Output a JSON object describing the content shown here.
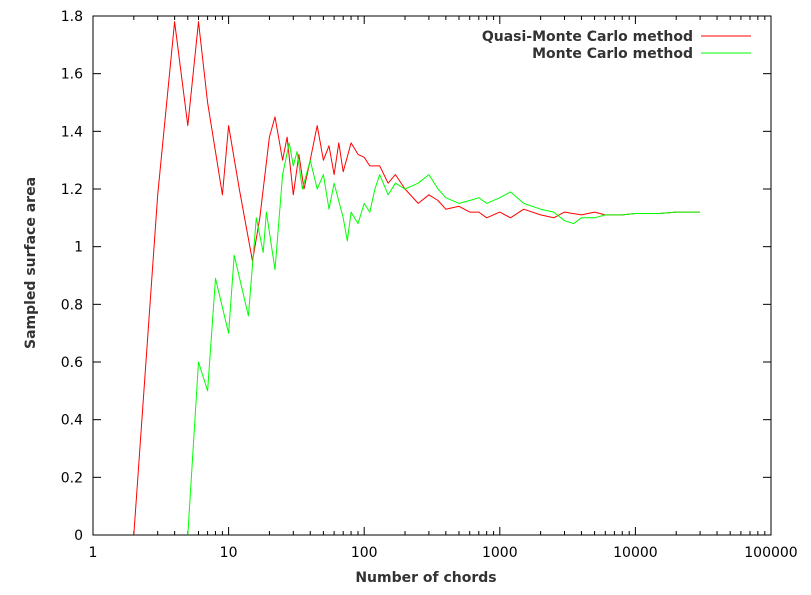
{
  "chart_data": {
    "type": "line",
    "xlabel": "Number of chords",
    "ylabel": "Sampled surface area",
    "x_scale": "log",
    "xlim": [
      1,
      100000
    ],
    "ylim": [
      0,
      1.8
    ],
    "x_ticks": [
      1,
      10,
      100,
      1000,
      10000,
      100000
    ],
    "x_tick_labels": [
      "1",
      "10",
      "100",
      "1000",
      "10000",
      "100000"
    ],
    "y_ticks": [
      0,
      0.2,
      0.4,
      0.6,
      0.8,
      1,
      1.2,
      1.4,
      1.6,
      1.8
    ],
    "y_tick_labels": [
      "0",
      "0.2",
      "0.4",
      "0.6",
      "0.8",
      "1",
      "1.2",
      "1.4",
      "1.6",
      "1.8"
    ],
    "grid": false,
    "legend_position": "top-right",
    "series": [
      {
        "name": "Quasi-Monte Carlo method",
        "color": "#ff0000",
        "points": [
          [
            2,
            0
          ],
          [
            3,
            1.18
          ],
          [
            4,
            1.78
          ],
          [
            5,
            1.42
          ],
          [
            6,
            1.78
          ],
          [
            7,
            1.5
          ],
          [
            9,
            1.18
          ],
          [
            10,
            1.42
          ],
          [
            12,
            1.2
          ],
          [
            15,
            0.95
          ],
          [
            17,
            1.1
          ],
          [
            20,
            1.38
          ],
          [
            22,
            1.45
          ],
          [
            25,
            1.3
          ],
          [
            27,
            1.38
          ],
          [
            30,
            1.18
          ],
          [
            33,
            1.32
          ],
          [
            36,
            1.2
          ],
          [
            40,
            1.3
          ],
          [
            45,
            1.42
          ],
          [
            50,
            1.3
          ],
          [
            55,
            1.35
          ],
          [
            60,
            1.25
          ],
          [
            65,
            1.36
          ],
          [
            70,
            1.26
          ],
          [
            80,
            1.36
          ],
          [
            90,
            1.32
          ],
          [
            100,
            1.31
          ],
          [
            110,
            1.28
          ],
          [
            130,
            1.28
          ],
          [
            150,
            1.22
          ],
          [
            170,
            1.25
          ],
          [
            200,
            1.2
          ],
          [
            250,
            1.15
          ],
          [
            300,
            1.18
          ],
          [
            350,
            1.16
          ],
          [
            400,
            1.13
          ],
          [
            500,
            1.14
          ],
          [
            600,
            1.12
          ],
          [
            700,
            1.12
          ],
          [
            800,
            1.1
          ],
          [
            1000,
            1.12
          ],
          [
            1200,
            1.1
          ],
          [
            1500,
            1.13
          ],
          [
            2000,
            1.11
          ],
          [
            2500,
            1.1
          ],
          [
            3000,
            1.12
          ],
          [
            4000,
            1.11
          ],
          [
            5000,
            1.12
          ],
          [
            6000,
            1.11
          ],
          [
            8000,
            1.11
          ],
          [
            10000,
            1.115
          ],
          [
            15000,
            1.115
          ],
          [
            20000,
            1.12
          ],
          [
            30000,
            1.12
          ]
        ]
      },
      {
        "name": "Monte Carlo method",
        "color": "#00ff00",
        "points": [
          [
            5,
            0
          ],
          [
            6,
            0.6
          ],
          [
            7,
            0.5
          ],
          [
            8,
            0.89
          ],
          [
            10,
            0.7
          ],
          [
            11,
            0.97
          ],
          [
            14,
            0.76
          ],
          [
            16,
            1.1
          ],
          [
            18,
            0.98
          ],
          [
            19,
            1.12
          ],
          [
            22,
            0.92
          ],
          [
            25,
            1.25
          ],
          [
            28,
            1.36
          ],
          [
            30,
            1.28
          ],
          [
            32,
            1.33
          ],
          [
            35,
            1.2
          ],
          [
            40,
            1.3
          ],
          [
            45,
            1.2
          ],
          [
            50,
            1.25
          ],
          [
            55,
            1.13
          ],
          [
            60,
            1.22
          ],
          [
            70,
            1.1
          ],
          [
            75,
            1.02
          ],
          [
            80,
            1.12
          ],
          [
            90,
            1.08
          ],
          [
            100,
            1.15
          ],
          [
            110,
            1.12
          ],
          [
            120,
            1.2
          ],
          [
            130,
            1.25
          ],
          [
            150,
            1.18
          ],
          [
            170,
            1.22
          ],
          [
            200,
            1.2
          ],
          [
            250,
            1.22
          ],
          [
            300,
            1.25
          ],
          [
            350,
            1.2
          ],
          [
            400,
            1.17
          ],
          [
            500,
            1.15
          ],
          [
            600,
            1.16
          ],
          [
            700,
            1.17
          ],
          [
            800,
            1.15
          ],
          [
            1000,
            1.17
          ],
          [
            1200,
            1.19
          ],
          [
            1500,
            1.15
          ],
          [
            2000,
            1.13
          ],
          [
            2500,
            1.12
          ],
          [
            3000,
            1.09
          ],
          [
            3500,
            1.08
          ],
          [
            4000,
            1.1
          ],
          [
            5000,
            1.1
          ],
          [
            6000,
            1.11
          ],
          [
            8000,
            1.11
          ],
          [
            10000,
            1.115
          ],
          [
            15000,
            1.115
          ],
          [
            20000,
            1.12
          ],
          [
            30000,
            1.12
          ]
        ]
      }
    ]
  }
}
